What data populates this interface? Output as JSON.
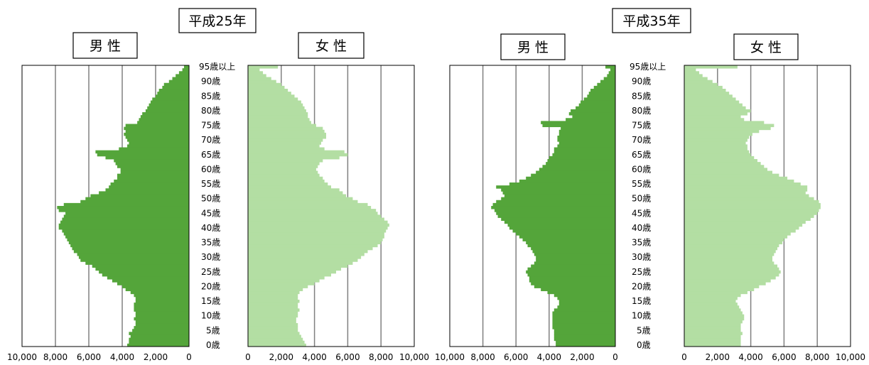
{
  "colors": {
    "male": "#54a53a",
    "female": "#b3dea3",
    "grid": "#808080",
    "frame": "#000000"
  },
  "chart_data": [
    {
      "type": "bar",
      "orientation": "horizontal",
      "title": "平成25年",
      "age_labels": [
        "0歳",
        "5歳",
        "10歳",
        "15歳",
        "20歳",
        "25歳",
        "30歳",
        "35歳",
        "40歳",
        "45歳",
        "50歳",
        "55歳",
        "60歳",
        "65歳",
        "70歳",
        "75歳",
        "80歳",
        "85歳",
        "90歳",
        "95歳以上"
      ],
      "xlim": [
        0,
        10000
      ],
      "x_ticks": [
        "0",
        "2,000",
        "4,000",
        "6,000",
        "8,000",
        "10,000"
      ],
      "series": [
        {
          "name": "男 性",
          "side": "left",
          "values": [
            3700,
            3600,
            3600,
            3500,
            3600,
            3400,
            3300,
            3200,
            3200,
            3300,
            3200,
            3200,
            3300,
            3300,
            3300,
            3200,
            3200,
            3300,
            3500,
            3800,
            4000,
            4300,
            4600,
            4900,
            5200,
            5400,
            5600,
            5800,
            6200,
            6500,
            6600,
            6700,
            6900,
            7000,
            7100,
            7200,
            7300,
            7400,
            7500,
            7600,
            7800,
            7800,
            7700,
            7600,
            7500,
            7400,
            7800,
            7900,
            7500,
            6500,
            6200,
            5900,
            5400,
            5000,
            4800,
            4700,
            4500,
            4300,
            4300,
            4100,
            4100,
            4300,
            4400,
            4500,
            5000,
            5500,
            5600,
            4200,
            3700,
            3600,
            3700,
            3800,
            3900,
            3800,
            3900,
            3800,
            3100,
            3000,
            2900,
            2800,
            2600,
            2500,
            2400,
            2300,
            2200,
            2000,
            1900,
            1800,
            1600,
            1500,
            1200,
            1000,
            800,
            600,
            400,
            300
          ]
        },
        {
          "name": "女 性",
          "side": "right",
          "values": [
            3500,
            3400,
            3300,
            3200,
            3100,
            3000,
            3000,
            3000,
            2900,
            2900,
            3000,
            3000,
            3100,
            3000,
            3000,
            3100,
            3000,
            3000,
            3100,
            3300,
            3600,
            4000,
            4300,
            4600,
            5000,
            5300,
            5600,
            6000,
            6300,
            6600,
            6800,
            7000,
            7200,
            7500,
            7800,
            8000,
            8100,
            8200,
            8200,
            8300,
            8400,
            8500,
            8400,
            8200,
            8000,
            7800,
            7700,
            7400,
            7200,
            6600,
            6300,
            5900,
            5700,
            5500,
            5000,
            4800,
            4600,
            4500,
            4300,
            4200,
            4100,
            4200,
            4300,
            4500,
            5500,
            6000,
            5800,
            4600,
            4300,
            4400,
            4500,
            4700,
            4700,
            4600,
            4500,
            4100,
            3800,
            3700,
            3600,
            3600,
            3500,
            3400,
            3300,
            3200,
            3000,
            2800,
            2600,
            2400,
            2200,
            2000,
            1700,
            1400,
            1100,
            900,
            700,
            1800
          ]
        }
      ]
    },
    {
      "type": "bar",
      "orientation": "horizontal",
      "title": "平成35年",
      "age_labels": [
        "0歳",
        "5歳",
        "10歳",
        "15歳",
        "20歳",
        "25歳",
        "30歳",
        "35歳",
        "40歳",
        "45歳",
        "50歳",
        "55歳",
        "60歳",
        "65歳",
        "70歳",
        "75歳",
        "80歳",
        "85歳",
        "90歳",
        "95歳以上"
      ],
      "xlim": [
        0,
        10000
      ],
      "x_ticks": [
        "0",
        "2,000",
        "4,000",
        "6,000",
        "8,000",
        "10,000"
      ],
      "series": [
        {
          "name": "男 性",
          "side": "left",
          "values": [
            3600,
            3600,
            3700,
            3700,
            3700,
            3700,
            3800,
            3800,
            3800,
            3800,
            3800,
            3800,
            3700,
            3500,
            3400,
            3400,
            3500,
            3700,
            4100,
            4500,
            4900,
            5100,
            5200,
            5200,
            5300,
            5400,
            5300,
            5100,
            4900,
            4800,
            4800,
            4900,
            5000,
            5100,
            5300,
            5400,
            5600,
            5800,
            6000,
            6200,
            6400,
            6500,
            6700,
            6900,
            7100,
            7200,
            7300,
            7500,
            7400,
            7200,
            6900,
            6700,
            6800,
            6900,
            7200,
            6400,
            5800,
            5400,
            5100,
            4800,
            4600,
            4400,
            4200,
            4100,
            4000,
            3800,
            3700,
            3700,
            3500,
            3400,
            3500,
            3500,
            3400,
            3400,
            3300,
            4400,
            4500,
            3000,
            2600,
            2800,
            2700,
            2400,
            2200,
            2100,
            1900,
            1700,
            1600,
            1500,
            1300,
            1100,
            900,
            700,
            500,
            400,
            300,
            600
          ]
        },
        {
          "name": "女 性",
          "side": "right",
          "values": [
            3400,
            3400,
            3400,
            3400,
            3500,
            3400,
            3400,
            3400,
            3500,
            3600,
            3600,
            3500,
            3400,
            3300,
            3200,
            3100,
            3200,
            3400,
            3800,
            4200,
            4500,
            4900,
            5200,
            5500,
            5700,
            5800,
            5700,
            5600,
            5400,
            5300,
            5300,
            5400,
            5500,
            5600,
            5700,
            5900,
            6000,
            6200,
            6400,
            6700,
            6900,
            7100,
            7300,
            7600,
            7800,
            8000,
            8100,
            8200,
            8200,
            8100,
            7800,
            7500,
            7300,
            7400,
            7400,
            7000,
            6600,
            6200,
            5700,
            5300,
            5000,
            4800,
            4600,
            4400,
            4200,
            4000,
            3900,
            3800,
            3800,
            3700,
            3800,
            3900,
            4100,
            4500,
            5200,
            5400,
            4800,
            3600,
            3400,
            3800,
            4000,
            3700,
            3500,
            3300,
            3100,
            2900,
            2700,
            2500,
            2300,
            2000,
            1700,
            1400,
            1100,
            900,
            700,
            3200
          ]
        }
      ]
    }
  ]
}
